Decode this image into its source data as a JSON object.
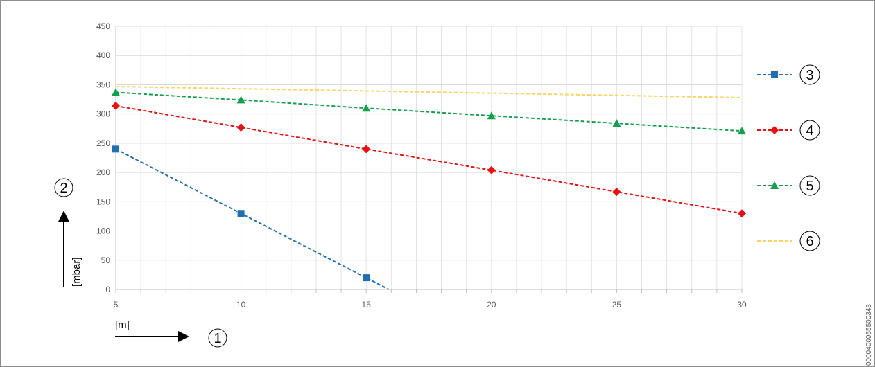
{
  "chart_data": {
    "type": "line",
    "title": "",
    "xlabel": "[m]",
    "ylabel": "[mbar]",
    "xlim": [
      5,
      30
    ],
    "ylim": [
      0,
      450
    ],
    "x_ticks": [
      "5",
      "10",
      "15",
      "20",
      "25",
      "30"
    ],
    "y_ticks": [
      "0",
      "50",
      "100",
      "150",
      "200",
      "250",
      "300",
      "350",
      "400",
      "450"
    ],
    "grid": true,
    "legend_position": "right",
    "series": [
      {
        "legend_label": "3",
        "color": "#1F6FB5",
        "marker": "square",
        "points": [
          [
            5,
            240
          ],
          [
            10,
            130
          ],
          [
            15,
            20
          ],
          [
            15.9,
            0
          ]
        ],
        "marker_count": 3
      },
      {
        "legend_label": "4",
        "color": "#E81010",
        "marker": "diamond",
        "points": [
          [
            5,
            314
          ],
          [
            10,
            277
          ],
          [
            15,
            240
          ],
          [
            20,
            204
          ],
          [
            25,
            167
          ],
          [
            30,
            130
          ]
        ],
        "marker_count": 6
      },
      {
        "legend_label": "5",
        "color": "#12A04E",
        "marker": "triangle",
        "points": [
          [
            5,
            337
          ],
          [
            10,
            324
          ],
          [
            15,
            310
          ],
          [
            20,
            297
          ],
          [
            25,
            284
          ],
          [
            30,
            271
          ]
        ],
        "marker_count": 6
      },
      {
        "legend_label": "6",
        "color": "#FFD25E",
        "marker": "none",
        "points": [
          [
            5,
            347
          ],
          [
            30,
            328
          ]
        ],
        "marker_count": 0
      }
    ]
  },
  "annotations": {
    "x_axis_callout": "1",
    "y_axis_callout": "2"
  },
  "document_id": "0000400055500343"
}
